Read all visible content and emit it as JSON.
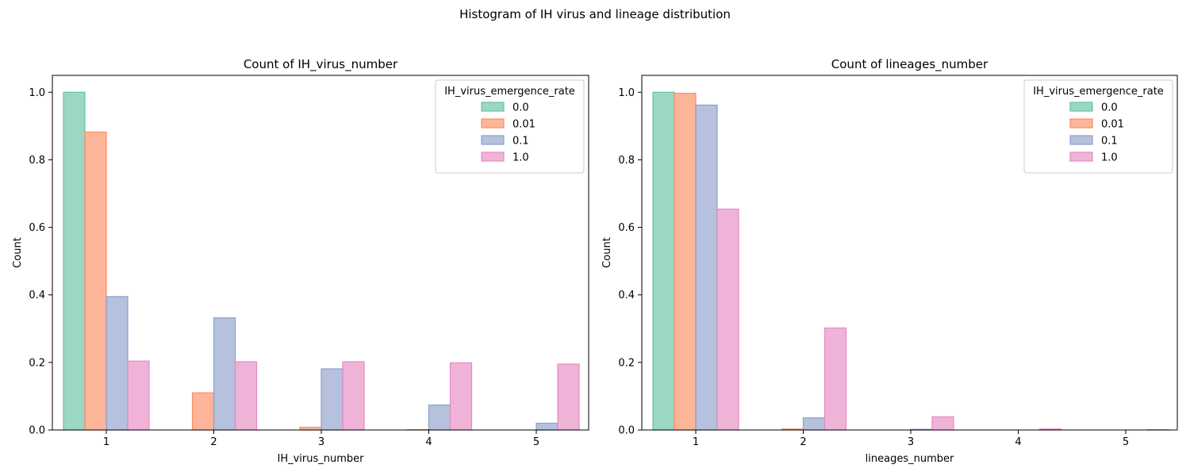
{
  "figure": {
    "suptitle": "Histogram of IH virus and lineage distribution"
  },
  "colors": {
    "0.0": "#66c2a5",
    "0.01": "#fc8d62",
    "0.1": "#8da0cb",
    "1.0": "#e78ac3"
  },
  "chart_data": [
    {
      "type": "bar",
      "title": "Count of IH_virus_number",
      "xlabel": "IH_virus_number",
      "ylabel": "Count",
      "categories": [
        "1",
        "2",
        "3",
        "4",
        "5"
      ],
      "ylim": [
        0,
        1.05
      ],
      "yticks": [
        "0.0",
        "0.2",
        "0.4",
        "0.6",
        "0.8",
        "1.0"
      ],
      "legend": {
        "title": "IH_virus_emergence_rate",
        "location": "top-right"
      },
      "series": [
        {
          "name": "0.0",
          "values": [
            1.0,
            0.0,
            0.0,
            0.0,
            0.0
          ]
        },
        {
          "name": "0.01",
          "values": [
            0.882,
            0.11,
            0.008,
            0.001,
            0.0
          ]
        },
        {
          "name": "0.1",
          "values": [
            0.395,
            0.332,
            0.181,
            0.074,
            0.02
          ]
        },
        {
          "name": "1.0",
          "values": [
            0.204,
            0.202,
            0.202,
            0.199,
            0.195
          ]
        }
      ]
    },
    {
      "type": "bar",
      "title": "Count of lineages_number",
      "xlabel": "lineages_number",
      "ylabel": "Count",
      "categories": [
        "1",
        "2",
        "3",
        "4",
        "5"
      ],
      "ylim": [
        0,
        1.05
      ],
      "yticks": [
        "0.0",
        "0.2",
        "0.4",
        "0.6",
        "0.8",
        "1.0"
      ],
      "legend": {
        "title": "IH_virus_emergence_rate",
        "location": "top-right"
      },
      "series": [
        {
          "name": "0.0",
          "values": [
            1.0,
            0.0,
            0.0,
            0.0,
            0.0
          ]
        },
        {
          "name": "0.01",
          "values": [
            0.997,
            0.003,
            0.0,
            0.0,
            0.0
          ]
        },
        {
          "name": "0.1",
          "values": [
            0.962,
            0.036,
            0.002,
            0.0,
            0.0
          ]
        },
        {
          "name": "1.0",
          "values": [
            0.654,
            0.302,
            0.039,
            0.003,
            0.001
          ]
        }
      ]
    }
  ]
}
